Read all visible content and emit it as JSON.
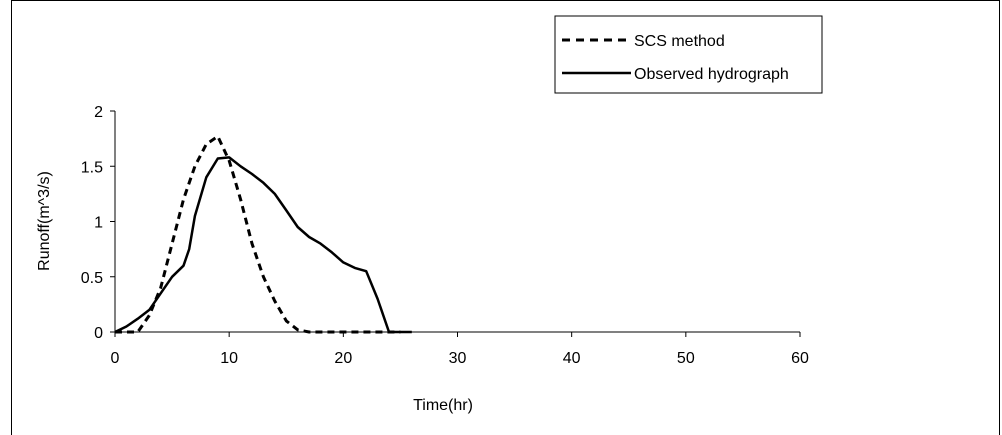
{
  "chart_data": {
    "type": "line",
    "xlabel": "Time(hr)",
    "ylabel": "Runoff(m^3/s)",
    "xlim": [
      0,
      60
    ],
    "ylim": [
      0,
      2
    ],
    "x_ticks": [
      "0",
      "10",
      "20",
      "30",
      "40",
      "50",
      "60"
    ],
    "y_ticks": [
      "0",
      "0.5",
      "1",
      "1.5",
      "2"
    ],
    "grid": false,
    "legend_position": "top-right",
    "series": [
      {
        "name": "SCS method",
        "style": "dashed",
        "color": "#000000",
        "x": [
          0,
          1,
          2,
          3,
          4,
          5,
          6,
          7,
          8,
          9,
          10,
          11,
          12,
          13,
          14,
          15,
          16,
          17,
          18,
          19,
          20,
          21,
          22,
          23,
          24,
          25
        ],
        "y": [
          0,
          0,
          0.0,
          0.15,
          0.4,
          0.8,
          1.2,
          1.5,
          1.7,
          1.77,
          1.55,
          1.2,
          0.8,
          0.5,
          0.28,
          0.1,
          0.02,
          0.0,
          0,
          0,
          0,
          0,
          0,
          0,
          0,
          0
        ]
      },
      {
        "name": "Observed hydrograph",
        "style": "solid",
        "color": "#000000",
        "x": [
          0,
          1,
          2,
          3,
          4,
          5,
          6,
          6.5,
          7,
          8,
          9,
          10,
          11,
          12,
          13,
          14,
          15,
          16,
          17,
          18,
          19,
          20,
          21,
          22,
          23,
          24,
          25,
          26
        ],
        "y": [
          0,
          0.05,
          0.12,
          0.2,
          0.35,
          0.5,
          0.6,
          0.75,
          1.05,
          1.4,
          1.57,
          1.58,
          1.5,
          1.43,
          1.35,
          1.25,
          1.1,
          0.95,
          0.86,
          0.8,
          0.72,
          0.63,
          0.58,
          0.55,
          0.3,
          0.0,
          0,
          0
        ]
      }
    ]
  }
}
